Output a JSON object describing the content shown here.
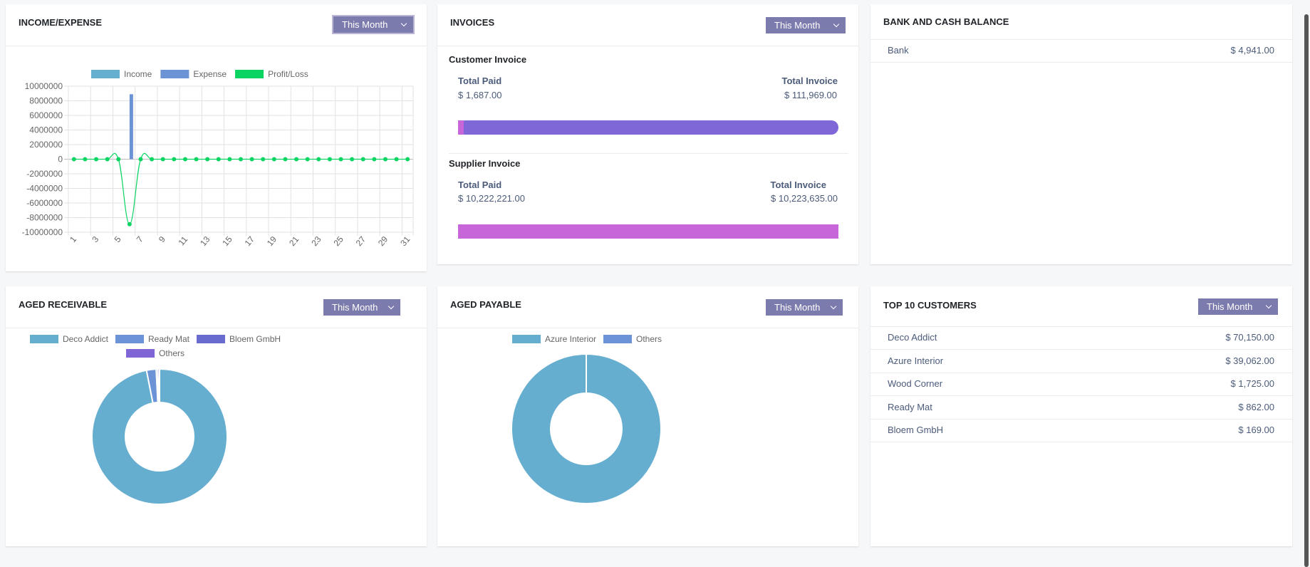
{
  "period_label": "This Month",
  "income_expense": {
    "title": "INCOME/EXPENSE",
    "chart_data": {
      "type": "bar",
      "categories": [
        "1",
        "2",
        "3",
        "4",
        "5",
        "6",
        "7",
        "8",
        "9",
        "10",
        "11",
        "12",
        "13",
        "14",
        "15",
        "16",
        "17",
        "18",
        "19",
        "20",
        "21",
        "22",
        "23",
        "24",
        "25",
        "26",
        "27",
        "28",
        "29",
        "30",
        "31"
      ],
      "tick_labels": [
        "1",
        "3",
        "5",
        "7",
        "9",
        "11",
        "13",
        "15",
        "17",
        "19",
        "21",
        "23",
        "25",
        "27",
        "29",
        "31"
      ],
      "series": [
        {
          "name": "Income",
          "type": "bar",
          "color": "#66aecf",
          "values": [
            0,
            0,
            0,
            0,
            0,
            0,
            0,
            0,
            0,
            0,
            0,
            0,
            0,
            0,
            0,
            0,
            0,
            0,
            0,
            0,
            0,
            0,
            0,
            0,
            0,
            0,
            0,
            0,
            0,
            0,
            0
          ]
        },
        {
          "name": "Expense",
          "type": "bar",
          "color": "#6b93d6",
          "values": [
            0,
            0,
            0,
            0,
            0,
            8900000,
            0,
            0,
            0,
            0,
            0,
            0,
            0,
            0,
            0,
            0,
            0,
            0,
            0,
            0,
            0,
            0,
            0,
            0,
            0,
            0,
            0,
            0,
            0,
            0,
            0
          ]
        },
        {
          "name": "Profit/Loss",
          "type": "line",
          "color": "#0ad562",
          "values": [
            0,
            0,
            0,
            0,
            0,
            -8900000,
            0,
            0,
            0,
            0,
            0,
            0,
            0,
            0,
            0,
            0,
            0,
            0,
            0,
            0,
            0,
            0,
            0,
            0,
            0,
            0,
            0,
            0,
            0,
            0,
            0
          ]
        }
      ],
      "yticks": [
        10000000,
        8000000,
        6000000,
        4000000,
        2000000,
        0,
        -2000000,
        -4000000,
        -6000000,
        -8000000,
        -10000000
      ],
      "ylim": [
        -10000000,
        10000000
      ],
      "grid": true,
      "legend": "top"
    }
  },
  "invoices": {
    "title": "INVOICES",
    "customer": {
      "heading": "Customer Invoice",
      "paid_label": "Total Paid",
      "paid": "$ 1,687.00",
      "total_label": "Total Invoice",
      "total": "$ 111,969.00",
      "paid_fraction": 0.015
    },
    "supplier": {
      "heading": "Supplier Invoice",
      "paid_label": "Total Paid",
      "paid": "$ 10,222,221.00",
      "total_label": "Total Invoice",
      "total": "$ 10,223,635.00",
      "paid_fraction": 0.9999
    },
    "colors": {
      "paid": "#c666d8",
      "unpaid": "#8067d8"
    }
  },
  "bank": {
    "title": "BANK AND CASH BALANCE",
    "rows": [
      {
        "name": "Bank",
        "amount": "$ 4,941.00"
      }
    ]
  },
  "aged_receivable": {
    "title": "AGED RECEIVABLE",
    "chart_data": {
      "type": "pie",
      "donut": true,
      "categories": [
        "Deco Addict",
        "Ready Mat",
        "Bloem GmbH",
        "Others"
      ],
      "values": [
        96.9,
        2.3,
        0.4,
        0.4
      ],
      "colors": [
        "#66aecf",
        "#6b93d6",
        "#6a6bcf",
        "#8066d4"
      ],
      "legend": "top"
    }
  },
  "aged_payable": {
    "title": "AGED PAYABLE",
    "chart_data": {
      "type": "pie",
      "donut": true,
      "categories": [
        "Azure Interior",
        "Others"
      ],
      "values": [
        100,
        0
      ],
      "colors": [
        "#66aecf",
        "#6b93d6"
      ],
      "legend": "top"
    }
  },
  "top_customers": {
    "title": "TOP 10 CUSTOMERS",
    "rows": [
      {
        "name": "Deco Addict",
        "amount": "$ 70,150.00"
      },
      {
        "name": "Azure Interior",
        "amount": "$ 39,062.00"
      },
      {
        "name": "Wood Corner",
        "amount": "$ 1,725.00"
      },
      {
        "name": "Ready Mat",
        "amount": "$ 862.00"
      },
      {
        "name": "Bloem GmbH",
        "amount": "$ 169.00"
      }
    ]
  }
}
